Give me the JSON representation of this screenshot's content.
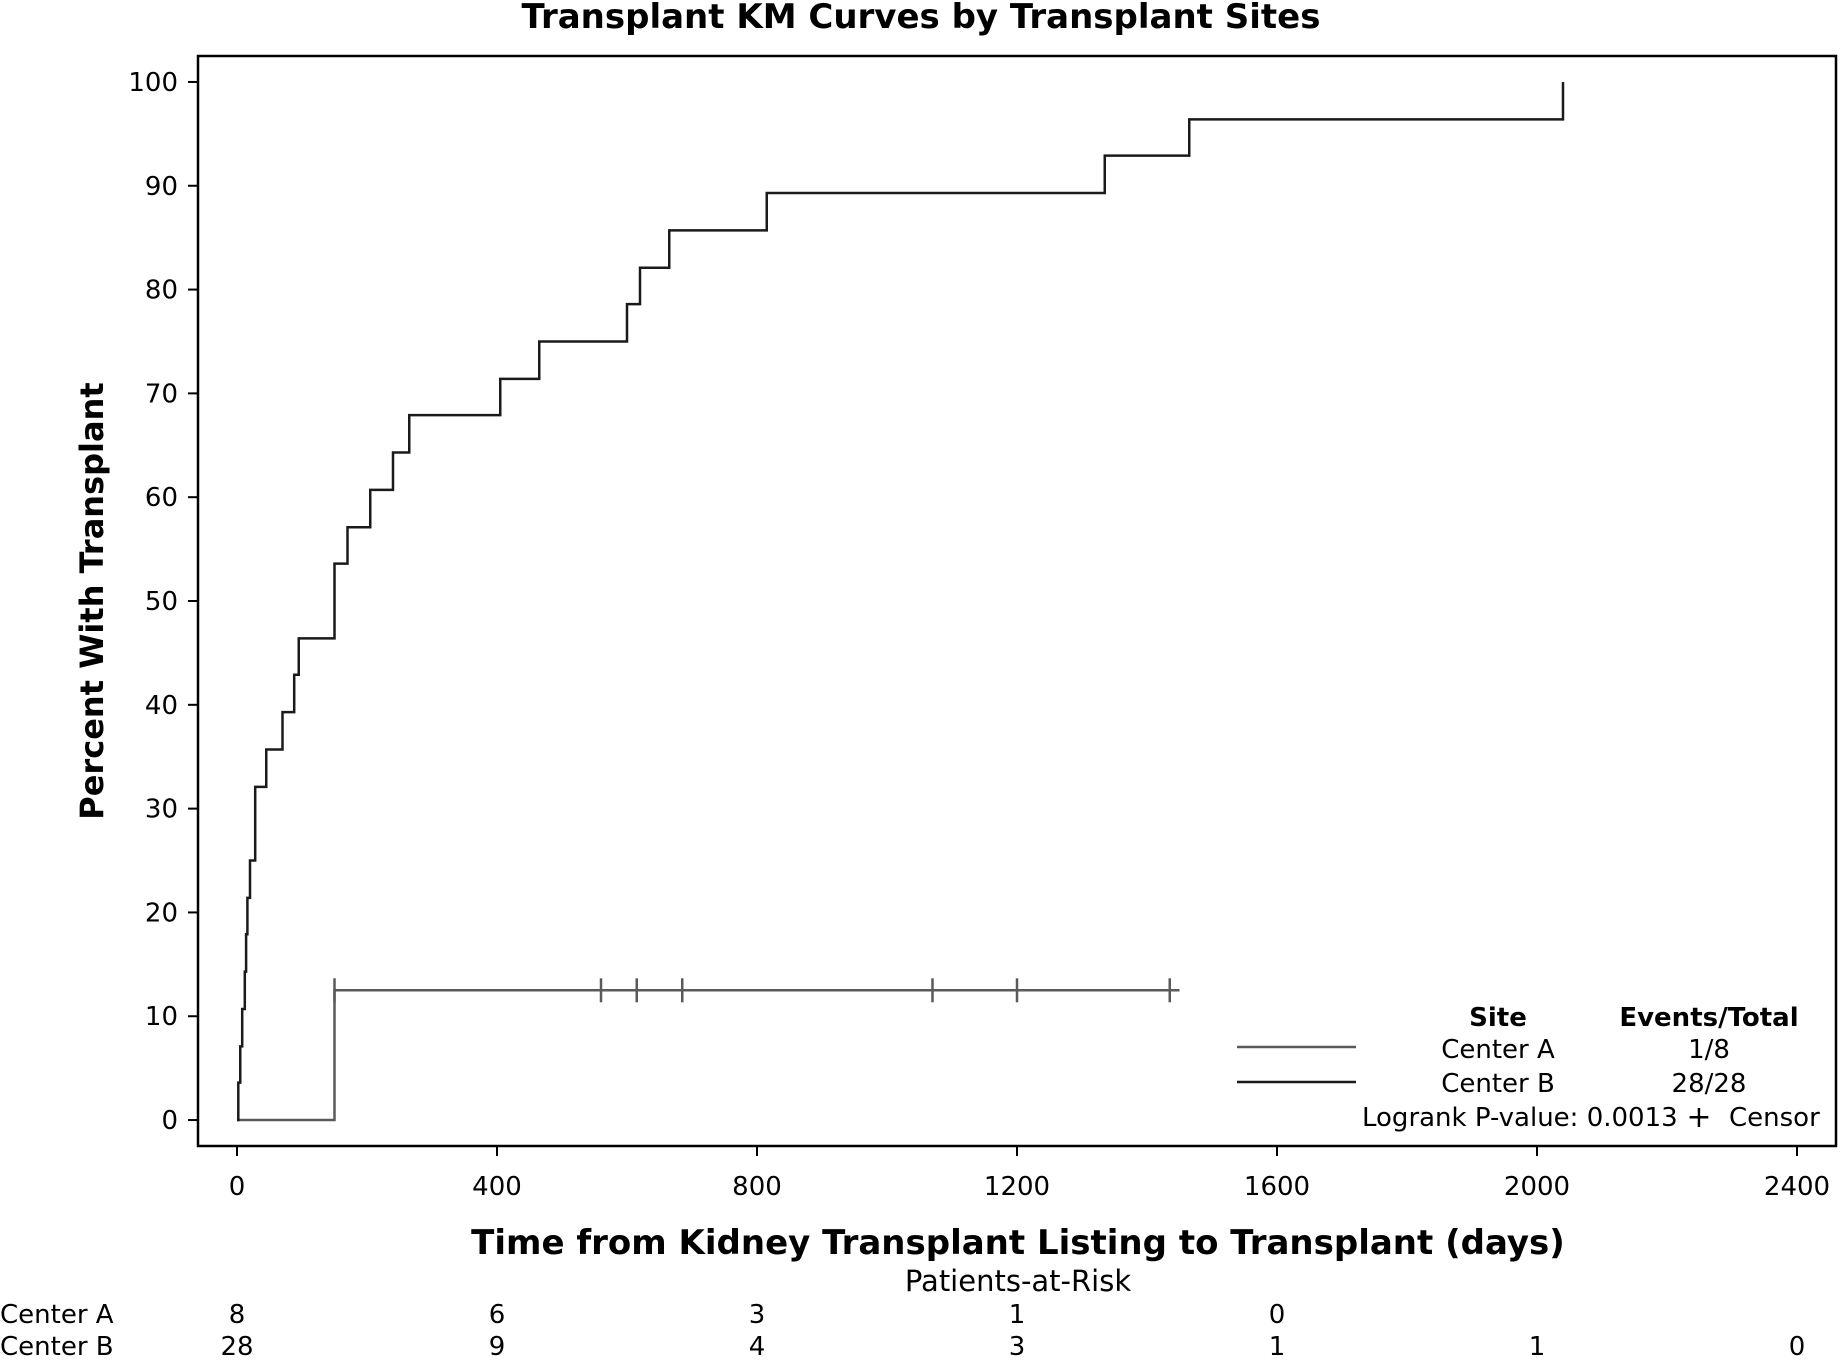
{
  "chart_data": {
    "type": "line",
    "title": "Transplant KM Curves by Transplant Sites",
    "xlabel": "Time from Kidney Transplant Listing to Transplant (days)",
    "ylabel": "Percent With Transplant",
    "xlim": [
      -60,
      2460
    ],
    "ylim": [
      -2.5,
      102.5
    ],
    "xticks": [
      0,
      400,
      800,
      1200,
      1600,
      2000,
      2400
    ],
    "xtick_labels": [
      "0",
      "400",
      "800",
      "1200",
      "1600",
      "2000",
      "2400"
    ],
    "yticks": [
      0,
      10,
      20,
      30,
      40,
      50,
      60,
      70,
      80,
      90,
      100
    ],
    "ytick_labels": [
      "0",
      "10",
      "20",
      "30",
      "40",
      "50",
      "60",
      "70",
      "80",
      "90",
      "100"
    ],
    "grid": false,
    "step": true,
    "series": [
      {
        "name": "Center A",
        "color": "#5a5a5a",
        "x": [
          0,
          150,
          1450
        ],
        "y": [
          0,
          12.5,
          12.5
        ],
        "censor_x": [
          150,
          560,
          615,
          685,
          1070,
          1200,
          1435
        ]
      },
      {
        "name": "Center B",
        "color": "#1a1a1a",
        "x": [
          0,
          2,
          5,
          8,
          12,
          14,
          16,
          20,
          28,
          45,
          70,
          88,
          95,
          150,
          170,
          205,
          240,
          265,
          405,
          465,
          600,
          620,
          665,
          815,
          1335,
          1465,
          2040
        ],
        "y": [
          0,
          3.6,
          7.1,
          10.7,
          14.3,
          17.9,
          21.4,
          25.0,
          32.1,
          35.7,
          39.3,
          42.9,
          46.4,
          53.6,
          57.1,
          60.7,
          64.3,
          67.9,
          71.4,
          75.0,
          78.6,
          82.1,
          85.7,
          89.3,
          92.9,
          96.4,
          100
        ]
      }
    ],
    "legend": {
      "position": "bottom-right",
      "head_site": "Site",
      "head_events": "Events/Total",
      "entries": [
        {
          "label": "Center A",
          "events": "1/8"
        },
        {
          "label": "Center B",
          "events": "28/28"
        }
      ],
      "pvalue_text": "Logrank P-value: 0.0013",
      "censor_text": "Censor",
      "censor_symbol": "+"
    },
    "risk_table": {
      "title": "Patients-at-Risk",
      "times": [
        0,
        400,
        800,
        1200,
        1600,
        2000,
        2400
      ],
      "rows": [
        {
          "label": "Center A",
          "values": [
            "8",
            "6",
            "3",
            "1",
            "0",
            "",
            ""
          ]
        },
        {
          "label": "Center B",
          "values": [
            "28",
            "9",
            "4",
            "3",
            "1",
            "1",
            "0"
          ]
        }
      ]
    }
  }
}
